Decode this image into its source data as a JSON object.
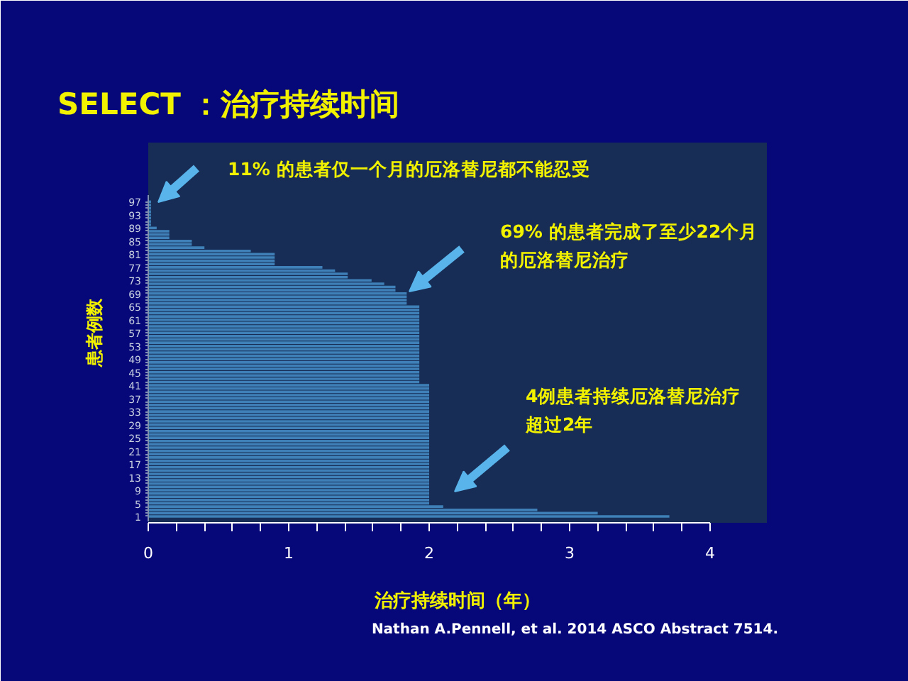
{
  "chart_data": {
    "type": "bar",
    "orientation": "horizontal",
    "title": "SELECT ：治疗持续时间",
    "xlabel": "治疗持续时间（年）",
    "ylabel": "患者例数",
    "categories": [
      "97",
      null,
      null,
      null,
      "93",
      null,
      null,
      null,
      "89",
      null,
      null,
      null,
      "85",
      null,
      null,
      null,
      "81",
      null,
      null,
      null,
      "77",
      null,
      null,
      null,
      "73",
      null,
      null,
      null,
      "69",
      null,
      null,
      null,
      "65",
      null,
      null,
      null,
      "61",
      null,
      null,
      null,
      "57",
      null,
      null,
      null,
      "53",
      null,
      null,
      null,
      "49",
      null,
      null,
      null,
      "45",
      null,
      null,
      null,
      "41",
      null,
      null,
      null,
      "37",
      null,
      null,
      null,
      "33",
      null,
      null,
      null,
      "29",
      null,
      null,
      null,
      "25",
      null,
      null,
      null,
      "21",
      null,
      null,
      null,
      "17",
      null,
      null,
      null,
      "13",
      null,
      null,
      null,
      "9",
      null,
      null,
      null,
      "5",
      null,
      null,
      null,
      "1"
    ],
    "values": [
      0.02,
      0.02,
      0.02,
      0.02,
      0.02,
      0.02,
      0.02,
      0.02,
      0.06,
      0.15,
      0.15,
      0.15,
      0.31,
      0.31,
      0.4,
      0.73,
      0.9,
      0.9,
      0.9,
      0.9,
      1.24,
      1.33,
      1.42,
      1.42,
      1.59,
      1.68,
      1.76,
      1.76,
      1.84,
      1.84,
      1.84,
      1.84,
      1.93,
      1.93,
      1.93,
      1.93,
      1.93,
      1.93,
      1.93,
      1.93,
      1.93,
      1.93,
      1.93,
      1.93,
      1.93,
      1.93,
      1.93,
      1.93,
      1.93,
      1.93,
      1.93,
      1.93,
      1.93,
      1.93,
      1.93,
      1.93,
      2.0,
      2.0,
      2.0,
      2.0,
      2.0,
      2.0,
      2.0,
      2.0,
      2.0,
      2.0,
      2.0,
      2.0,
      2.0,
      2.0,
      2.0,
      2.0,
      2.0,
      2.0,
      2.0,
      2.0,
      2.0,
      2.0,
      2.0,
      2.0,
      2.0,
      2.0,
      2.0,
      2.0,
      2.0,
      2.0,
      2.0,
      2.0,
      2.0,
      2.0,
      2.0,
      2.0,
      2.0,
      2.1,
      2.77,
      3.2,
      3.71
    ],
    "color": "#3f80b8",
    "xlim": [
      0,
      4
    ],
    "xticks": [
      0,
      {
        "value": 0.2,
        "label": null
      },
      {
        "value": 0.4,
        "label": null
      },
      {
        "value": 0.6,
        "label": null
      },
      {
        "value": 0.8,
        "label": null
      },
      1,
      {
        "value": 1.2,
        "label": null
      },
      {
        "value": 1.4,
        "label": null
      },
      {
        "value": 1.6,
        "label": null
      },
      {
        "value": 1.8,
        "label": null
      },
      2,
      {
        "value": 2.2,
        "label": null
      },
      {
        "value": 2.4,
        "label": null
      },
      {
        "value": 2.6,
        "label": null
      },
      {
        "value": 2.8,
        "label": null
      },
      3,
      {
        "value": 3.2,
        "label": null
      },
      {
        "value": 3.4,
        "label": null
      },
      {
        "value": 3.6,
        "label": null
      },
      {
        "value": 3.8,
        "label": null
      },
      4
    ],
    "annotations": [
      "11% 的患者仅一个月的厄洛替尼都不能忍受",
      "69% 的患者完成了至少22个月的厄洛替尼治疗",
      "4例患者持续厄洛替尼治疗超过2年",
      "Nathan A.Pennell, et al. 2014 ASCO Abstract 7514."
    ],
    "grid": false
  }
}
